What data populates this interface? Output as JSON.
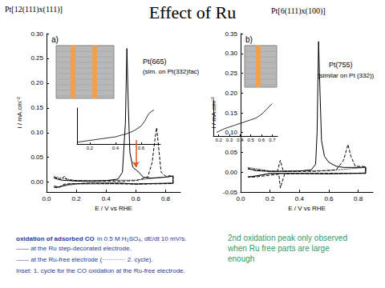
{
  "title": "Effect of Ru",
  "chart_data": [
    {
      "type": "line",
      "title": "Pt[12(111)x(111)]",
      "annotations": [
        "a)",
        "Pt(665)",
        "(sim. on Pt(332)fac)"
      ],
      "xlabel": "E / V vs RHE",
      "ylabel": "I / mA.cm⁻²",
      "xlim": [
        0,
        0.9
      ],
      "ylim": [
        -0.02,
        0.3
      ],
      "xticks": [
        {
          "value": 0,
          "label": "0.0"
        },
        0.2,
        0.4,
        0.6,
        0.8
      ],
      "yticks": [
        {
          "value": 0,
          "label": "0.00"
        },
        {
          "value": 0.05,
          "label": "0.05"
        },
        {
          "value": 0.1,
          "label": "0.10"
        },
        {
          "value": 0.15,
          "label": "0.15"
        },
        {
          "value": 0.2,
          "label": "0.20"
        },
        {
          "value": 0.25,
          "label": "0.25"
        },
        {
          "value": 0.3,
          "label": "0.30"
        }
      ],
      "grid": false,
      "marker": "none",
      "arrow": {
        "x": [
          0.6,
          0.6
        ],
        "y": [
          0.085,
          0.03
        ],
        "color": "#e0541c"
      },
      "series": [
        {
          "color": "#000000",
          "line_style": "solid",
          "x": [
            0.05,
            0.1,
            0.2,
            0.3,
            0.4,
            0.48,
            0.51,
            0.53,
            0.54,
            0.55,
            0.56,
            0.58,
            0.6,
            0.62,
            0.65,
            0.7,
            0.8,
            0.85,
            0.85,
            0.7,
            0.6,
            0.5,
            0.3,
            0.15,
            0.08,
            0.05
          ],
          "values": [
            0.008,
            0.004,
            0.002,
            0.002,
            0.003,
            0.006,
            0.02,
            0.12,
            0.27,
            0.15,
            0.06,
            0.03,
            0.025,
            0.02,
            0.01,
            0.008,
            0.01,
            0.012,
            -0.002,
            -0.003,
            -0.004,
            -0.002,
            -0.002,
            -0.004,
            -0.01,
            -0.008
          ]
        },
        {
          "color": "#000000",
          "line_style": "dashed",
          "x": [
            0.05,
            0.1,
            0.12,
            0.14,
            0.3,
            0.5,
            0.6,
            0.68,
            0.71,
            0.73,
            0.74,
            0.75,
            0.77,
            0.8,
            0.85,
            0.85,
            0.6,
            0.3,
            0.12,
            0.08,
            0.05
          ],
          "values": [
            0.01,
            0.005,
            0.012,
            0.004,
            0.002,
            0.002,
            0.003,
            0.01,
            0.04,
            0.09,
            0.11,
            0.08,
            0.02,
            0.012,
            0.013,
            -0.003,
            -0.004,
            -0.002,
            -0.004,
            -0.012,
            -0.01
          ]
        },
        {
          "color": "#000000",
          "line_style": "dotted",
          "x": [
            0.05,
            0.2,
            0.6,
            0.85,
            0.85,
            0.2,
            0.05
          ],
          "values": [
            0.011,
            0.003,
            0.004,
            0.012,
            -0.003,
            -0.004,
            -0.011
          ]
        }
      ]
    },
    {
      "type": "line",
      "title": "Pt[6(111)x(100)]",
      "annotations": [
        "b)",
        "Pt(755)",
        "(similar on Pt (332))"
      ],
      "xlabel": "E / V vs RHE",
      "ylabel": "I / mA.cm⁻²",
      "xlim": [
        0,
        0.9
      ],
      "ylim": [
        -0.05,
        0.35
      ],
      "xticks": [
        {
          "value": 0,
          "label": "0.0"
        },
        0.2,
        0.4,
        0.6,
        0.8
      ],
      "yticks": [
        {
          "value": -0.05,
          "label": "-0.05"
        },
        {
          "value": 0,
          "label": "0.00"
        },
        {
          "value": 0.05,
          "label": "0.05"
        },
        {
          "value": 0.1,
          "label": "0.10"
        },
        {
          "value": 0.15,
          "label": "0.15"
        },
        {
          "value": 0.2,
          "label": "0.20"
        },
        {
          "value": 0.25,
          "label": "0.25"
        },
        {
          "value": 0.3,
          "label": "0.30"
        },
        {
          "value": 0.35,
          "label": "0.35"
        }
      ],
      "grid": false,
      "marker": "none",
      "series": [
        {
          "color": "#000000",
          "line_style": "solid",
          "x": [
            0.05,
            0.1,
            0.2,
            0.3,
            0.4,
            0.48,
            0.51,
            0.52,
            0.53,
            0.54,
            0.55,
            0.57,
            0.6,
            0.65,
            0.7,
            0.8,
            0.85,
            0.85,
            0.6,
            0.4,
            0.2,
            0.1,
            0.05
          ],
          "values": [
            0.01,
            0.004,
            0.002,
            0.002,
            0.003,
            0.006,
            0.02,
            0.1,
            0.33,
            0.2,
            0.08,
            0.04,
            0.025,
            0.015,
            0.012,
            0.012,
            0.013,
            -0.002,
            -0.004,
            -0.003,
            -0.003,
            -0.01,
            -0.012
          ]
        },
        {
          "color": "#000000",
          "line_style": "dashed",
          "x": [
            0.05,
            0.2,
            0.25,
            0.27,
            0.29,
            0.5,
            0.65,
            0.7,
            0.73,
            0.75,
            0.78,
            0.85,
            0.85,
            0.5,
            0.3,
            0.27,
            0.26,
            0.1,
            0.05
          ],
          "values": [
            0.008,
            0.002,
            0.002,
            0.03,
            0.002,
            0.002,
            0.006,
            0.03,
            0.07,
            0.04,
            0.015,
            0.014,
            -0.003,
            -0.003,
            -0.004,
            -0.04,
            -0.005,
            -0.012,
            -0.012
          ]
        },
        {
          "color": "#000000",
          "line_style": "dotted",
          "x": [
            0.05,
            0.2,
            0.6,
            0.85,
            0.85,
            0.2,
            0.05
          ],
          "values": [
            0.012,
            0.003,
            0.004,
            0.012,
            -0.003,
            -0.004,
            -0.012
          ]
        }
      ]
    },
    {
      "type": "line",
      "xlim": [
        0.1,
        0.75
      ],
      "ylim": [
        0,
        1
      ],
      "xticks": [
        0.2,
        0.4,
        0.6
      ],
      "tick_labels": "x",
      "grid": false,
      "marker": "none",
      "series": [
        {
          "color": "#000000",
          "line_style": "solid",
          "x": [
            0.1,
            0.2,
            0.3,
            0.4,
            0.45,
            0.5,
            0.55,
            0.6,
            0.63,
            0.66,
            0.7
          ],
          "values": [
            0.05,
            0.1,
            0.15,
            0.2,
            0.25,
            0.3,
            0.38,
            0.5,
            0.65,
            0.85,
            0.95
          ]
        }
      ]
    },
    {
      "type": "line",
      "xlim": [
        0.15,
        0.75
      ],
      "ylim": [
        0,
        1
      ],
      "xticks": [
        0.2,
        0.3,
        0.4,
        0.5,
        0.6,
        0.7
      ],
      "tick_labels": "x",
      "grid": false,
      "marker": "none",
      "series": [
        {
          "color": "#000000",
          "line_style": "solid",
          "x": [
            0.18,
            0.25,
            0.3,
            0.35,
            0.4,
            0.45,
            0.5,
            0.55,
            0.6,
            0.65,
            0.7
          ],
          "values": [
            0.1,
            0.2,
            0.25,
            0.3,
            0.35,
            0.4,
            0.45,
            0.5,
            0.6,
            0.75,
            0.9
          ]
        }
      ]
    }
  ],
  "caption_left": {
    "heading": "oxidation of adsorbed CO",
    "lines": [
      "in 0.5 M H₂SO₄, dE/dt 10 mV/s.",
      "—— at the Ru step-decorated electrode.",
      "------ at the Ru-free electrode (··········· 2. cycle).",
      "Inset: 1. cycle for the CO oxidation at the Ru-free electrode."
    ],
    "color": "#1f3a9a"
  },
  "caption_right": {
    "lines": [
      "2nd oxidation peak only observed",
      "when Ru free parts are large",
      "enough"
    ],
    "color": "#2f9c68"
  }
}
